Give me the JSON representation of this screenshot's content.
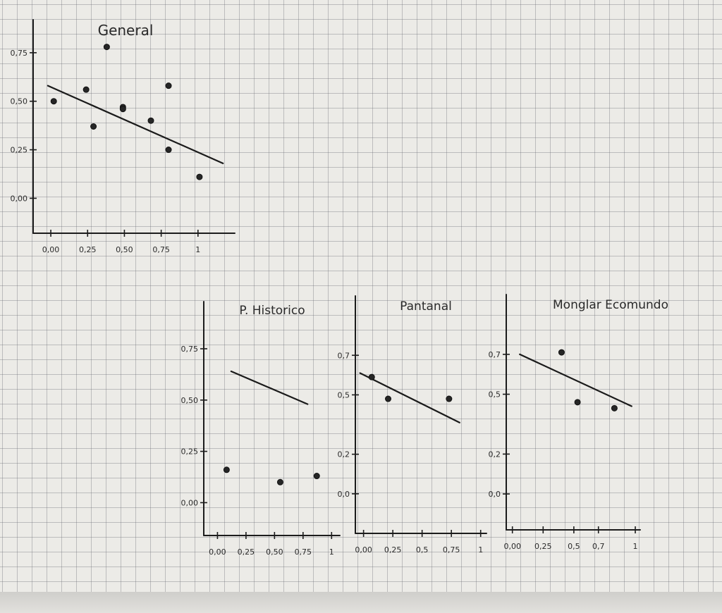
{
  "chart_data": [
    {
      "type": "scatter",
      "title": "General",
      "xlabel": "",
      "ylabel": "",
      "x_ticks": [
        {
          "v": 0,
          "label": "0,00"
        },
        {
          "v": 0.25,
          "label": "0,25"
        },
        {
          "v": 0.5,
          "label": "0,50"
        },
        {
          "v": 0.75,
          "label": "0,75"
        },
        {
          "v": 1,
          "label": "1"
        }
      ],
      "y_ticks": [
        {
          "v": 0,
          "label": "0,00"
        },
        {
          "v": 0.25,
          "label": "0,25"
        },
        {
          "v": 0.5,
          "label": "0,50"
        },
        {
          "v": 0.75,
          "label": "0,75"
        }
      ],
      "xlim": [
        -0.12,
        1.25
      ],
      "ylim": [
        -0.18,
        0.92
      ],
      "points": [
        {
          "x": 0.02,
          "y": 0.5
        },
        {
          "x": 0.24,
          "y": 0.56
        },
        {
          "x": 0.29,
          "y": 0.37
        },
        {
          "x": 0.38,
          "y": 0.78
        },
        {
          "x": 0.49,
          "y": 0.47
        },
        {
          "x": 0.49,
          "y": 0.46
        },
        {
          "x": 0.68,
          "y": 0.4
        },
        {
          "x": 0.8,
          "y": 0.58
        },
        {
          "x": 0.8,
          "y": 0.25
        },
        {
          "x": 1.01,
          "y": 0.11
        }
      ],
      "trendline": [
        {
          "x": -0.02,
          "y": 0.58
        },
        {
          "x": 1.17,
          "y": 0.18
        }
      ],
      "grid": false
    },
    {
      "type": "scatter",
      "title": "P. Historico",
      "xlabel": "",
      "ylabel": "",
      "x_ticks": [
        {
          "v": 0,
          "label": "0,00"
        },
        {
          "v": 0.25,
          "label": "0,25"
        },
        {
          "v": 0.5,
          "label": "0,50"
        },
        {
          "v": 0.75,
          "label": "0,75"
        },
        {
          "v": 1,
          "label": "1"
        }
      ],
      "y_ticks": [
        {
          "v": 0,
          "label": "0,00"
        },
        {
          "v": 0.25,
          "label": "0,25"
        },
        {
          "v": 0.5,
          "label": "0,50"
        },
        {
          "v": 0.75,
          "label": "0,75"
        }
      ],
      "xlim": [
        -0.12,
        1.06
      ],
      "ylim": [
        -0.16,
        0.98
      ],
      "points": [
        {
          "x": 0.08,
          "y": 0.16
        },
        {
          "x": 0.55,
          "y": 0.1
        },
        {
          "x": 0.87,
          "y": 0.13
        }
      ],
      "trendline": [
        {
          "x": 0.12,
          "y": 0.64
        },
        {
          "x": 0.79,
          "y": 0.48
        }
      ],
      "grid": false
    },
    {
      "type": "scatter",
      "title": "Pantanal",
      "xlabel": "",
      "ylabel": "",
      "x_ticks": [
        {
          "v": 0,
          "label": "0,00"
        },
        {
          "v": 0.25,
          "label": "0,25"
        },
        {
          "v": 0.5,
          "label": "0,5"
        },
        {
          "v": 0.75,
          "label": "0,75"
        },
        {
          "v": 1,
          "label": "1"
        }
      ],
      "y_ticks": [
        {
          "v": 0,
          "label": "0,0"
        },
        {
          "v": 0.2,
          "label": "0,2"
        },
        {
          "v": 0.5,
          "label": "0,5"
        },
        {
          "v": 0.7,
          "label": "0,7"
        }
      ],
      "xlim": [
        -0.07,
        1.05
      ],
      "ylim": [
        -0.2,
        1.0
      ],
      "points": [
        {
          "x": 0.07,
          "y": 0.59
        },
        {
          "x": 0.21,
          "y": 0.48
        },
        {
          "x": 0.73,
          "y": 0.48
        }
      ],
      "trendline": [
        {
          "x": -0.03,
          "y": 0.61
        },
        {
          "x": 0.82,
          "y": 0.36
        }
      ],
      "grid": false
    },
    {
      "type": "scatter",
      "title": "Monglar Ecomundo",
      "xlabel": "",
      "ylabel": "",
      "x_ticks": [
        {
          "v": 0,
          "label": "0,00"
        },
        {
          "v": 0.25,
          "label": "0,25"
        },
        {
          "v": 0.5,
          "label": "0,5"
        },
        {
          "v": 0.7,
          "label": "0,7"
        },
        {
          "v": 1,
          "label": "1"
        }
      ],
      "y_ticks": [
        {
          "v": 0,
          "label": "0,0"
        },
        {
          "v": 0.2,
          "label": "0,2"
        },
        {
          "v": 0.5,
          "label": "0,5"
        },
        {
          "v": 0.7,
          "label": "0,7"
        }
      ],
      "xlim": [
        -0.05,
        1.04
      ],
      "ylim": [
        -0.18,
        1.0
      ],
      "points": [
        {
          "x": 0.4,
          "y": 0.71
        },
        {
          "x": 0.53,
          "y": 0.46
        },
        {
          "x": 0.83,
          "y": 0.43
        }
      ],
      "trendline": [
        {
          "x": 0.06,
          "y": 0.7
        },
        {
          "x": 0.97,
          "y": 0.44
        }
      ],
      "grid": false
    }
  ]
}
